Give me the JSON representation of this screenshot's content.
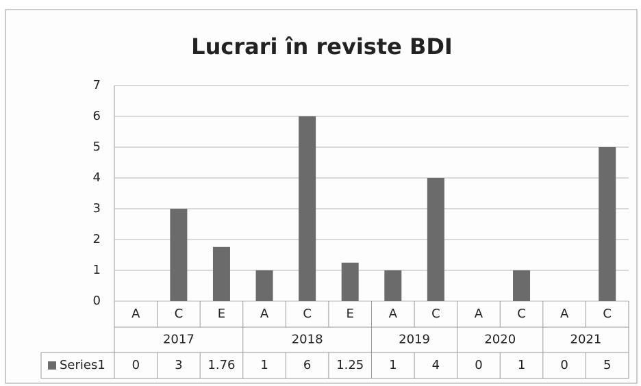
{
  "chart_data": {
    "type": "bar",
    "title": "Lucrari în reviste BDI",
    "categories": [
      "A",
      "C",
      "E",
      "A",
      "C",
      "E",
      "A",
      "C",
      "A",
      "C",
      "A",
      "C"
    ],
    "category_groups": [
      "2017",
      "2017",
      "2017",
      "2018",
      "2018",
      "2018",
      "2019",
      "2019",
      "2020",
      "2020",
      "2021",
      "2021"
    ],
    "series": [
      {
        "name": "Series1",
        "color": "#6b6b6b",
        "values": [
          0,
          3,
          1.76,
          1,
          6,
          1.25,
          1,
          4,
          0,
          1,
          0,
          5
        ]
      }
    ],
    "ylim": [
      0,
      7
    ],
    "yticks": [
      0,
      1,
      2,
      3,
      4,
      5,
      6,
      7
    ],
    "grid": true,
    "data_table": true
  }
}
